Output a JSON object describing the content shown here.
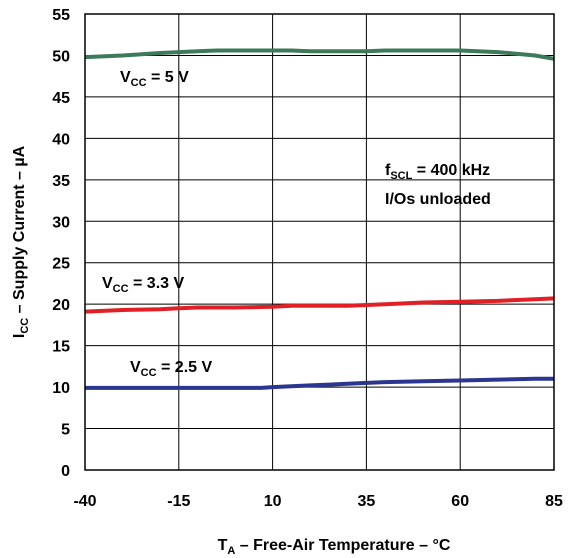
{
  "chart_data": {
    "type": "line",
    "xlabel": {
      "main": "T",
      "sub": "A",
      "rest": " – Free-Air Temperature – °C"
    },
    "ylabel": {
      "main": "I",
      "sub": "CC",
      "rest": " – Supply Current – µA"
    },
    "xlim": [
      -40,
      85
    ],
    "ylim": [
      0,
      55
    ],
    "xticks": [
      -40,
      -15,
      10,
      35,
      60,
      85
    ],
    "yticks": [
      0,
      5,
      10,
      15,
      20,
      25,
      30,
      35,
      40,
      45,
      50,
      55
    ],
    "grid": true,
    "series": [
      {
        "label": {
          "main": "V",
          "sub": "CC",
          "rest": " = 5 V"
        },
        "color": "#3c7a5a",
        "x": [
          -40,
          -30,
          -20,
          -15,
          -10,
          -5,
          0,
          10,
          15,
          20,
          30,
          35,
          40,
          50,
          60,
          70,
          80,
          85
        ],
        "y": [
          49.8,
          50.0,
          50.3,
          50.4,
          50.5,
          50.6,
          50.6,
          50.6,
          50.6,
          50.5,
          50.5,
          50.5,
          50.6,
          50.6,
          50.6,
          50.4,
          50.0,
          49.6
        ]
      },
      {
        "label": {
          "main": "V",
          "sub": "CC",
          "rest": " = 3.3 V"
        },
        "color": "#e02026",
        "x": [
          -40,
          -30,
          -20,
          -15,
          -10,
          0,
          10,
          15,
          20,
          30,
          35,
          40,
          50,
          60,
          70,
          80,
          85
        ],
        "y": [
          19.1,
          19.3,
          19.4,
          19.5,
          19.6,
          19.6,
          19.7,
          19.8,
          19.8,
          19.8,
          19.9,
          20.0,
          20.2,
          20.3,
          20.4,
          20.6,
          20.7
        ]
      },
      {
        "label": {
          "main": "V",
          "sub": "CC",
          "rest": " = 2.5 V"
        },
        "color": "#2b3690",
        "x": [
          -40,
          -30,
          -20,
          -10,
          0,
          7,
          10,
          15,
          20,
          25,
          30,
          35,
          40,
          50,
          60,
          70,
          80,
          85
        ],
        "y": [
          9.9,
          9.9,
          9.9,
          9.9,
          9.9,
          9.9,
          10.0,
          10.1,
          10.2,
          10.3,
          10.4,
          10.5,
          10.6,
          10.7,
          10.8,
          10.9,
          11.0,
          11.0
        ]
      }
    ],
    "annotation": {
      "line1": {
        "main": "f",
        "sub": "SCL",
        "rest": " = 400 kHz"
      },
      "line2": "I/Os unloaded"
    }
  }
}
